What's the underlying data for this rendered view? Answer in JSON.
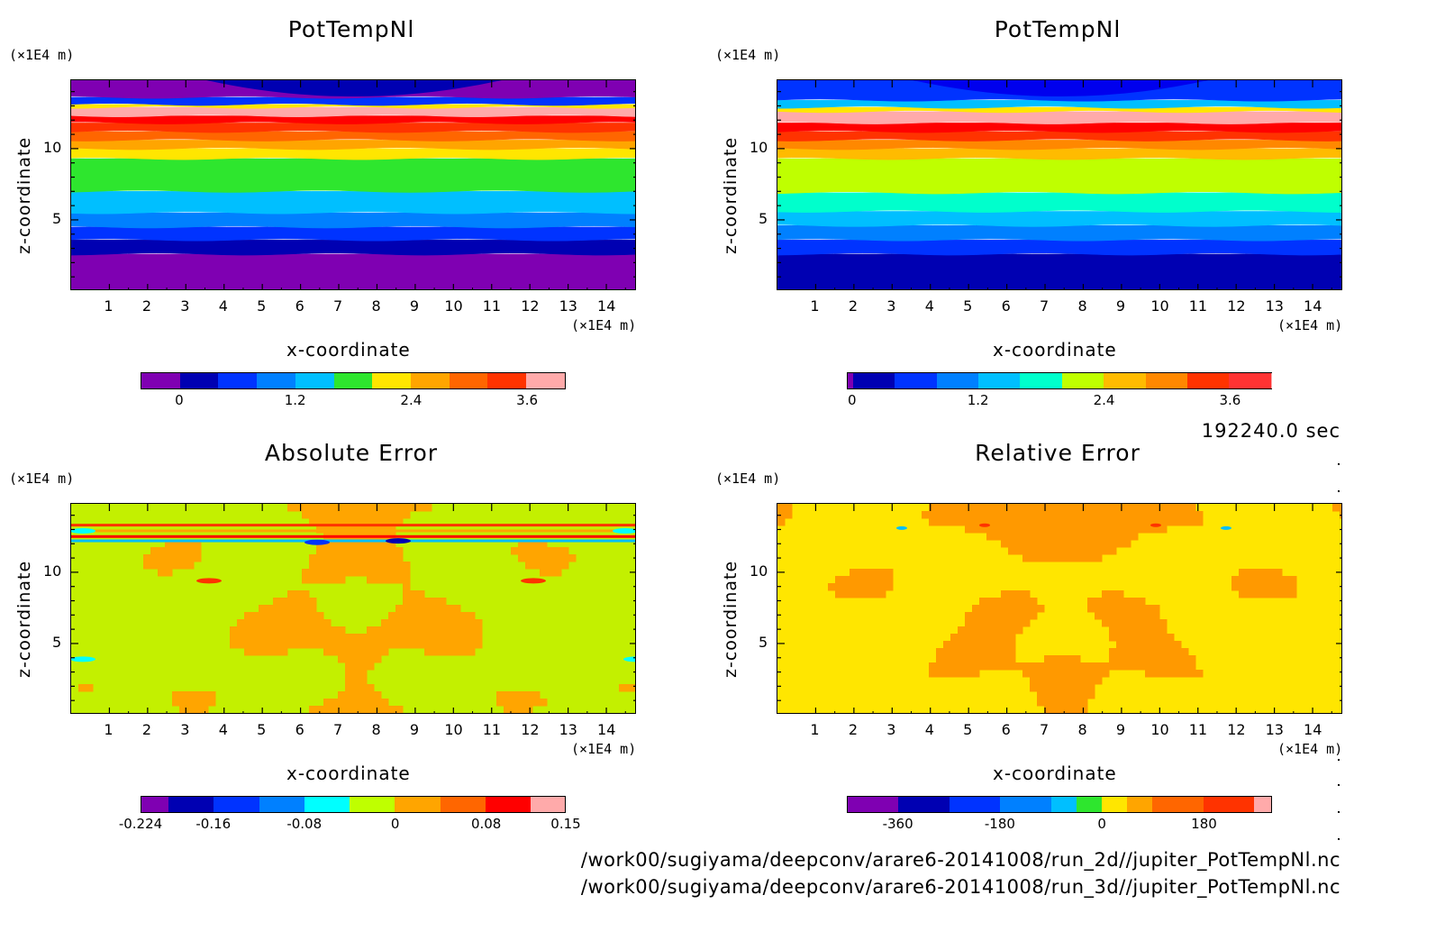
{
  "time_label": "192240.0 sec",
  "footer": {
    "file1": "/work00/sugiyama/deepconv/arare6-20141008/run_2d//jupiter_PotTempNl.nc",
    "file2": "/work00/sugiyama/deepconv/arare6-20141008/run_3d//jupiter_PotTempNl.nc"
  },
  "colors": {
    "rainbow14": [
      "#7f00b2",
      "#0000b2",
      "#0033ff",
      "#0080ff",
      "#00bfff",
      "#00ffff",
      "#2ee62e",
      "#bfff00",
      "#ffe600",
      "#ffa500",
      "#ff6600",
      "#ff3300",
      "#ff0000",
      "#ffaaaa"
    ]
  },
  "chart_data": [
    {
      "type": "heatmap",
      "title": "PotTempNl",
      "xlabel": "x-coordinate",
      "ylabel": "z-coordinate",
      "x_unit": "(×1E4 m)",
      "z_unit": "(×1E4 m)",
      "xlim": [
        0,
        14.8
      ],
      "ylim": [
        0,
        14.8
      ],
      "x_ticks": [
        "1",
        "2",
        "3",
        "4",
        "5",
        "6",
        "7",
        "8",
        "9",
        "10",
        "11",
        "12",
        "13",
        "14"
      ],
      "y_ticks": [
        "5",
        "10"
      ],
      "colorbar": {
        "ticks": [
          "0",
          "1.2",
          "2.4",
          "3.6"
        ],
        "colors": [
          "#7f00b2",
          "#0000b2",
          "#0033ff",
          "#0080ff",
          "#00bfff",
          "#2ee62e",
          "#ffe600",
          "#ffa500",
          "#ff6600",
          "#ff3300",
          "#ffaaaa"
        ],
        "boundaries": [
          -0.4,
          0,
          0.4,
          0.8,
          1.2,
          1.6,
          2.0,
          2.4,
          2.8,
          3.2,
          3.6,
          4.0
        ]
      },
      "bands": [
        {
          "z": [
            0,
            2.6
          ],
          "color": "#7f00b2"
        },
        {
          "z": [
            2.6,
            3.6
          ],
          "color": "#0000b2"
        },
        {
          "z": [
            3.6,
            4.5
          ],
          "color": "#0033ff"
        },
        {
          "z": [
            4.5,
            5.5
          ],
          "color": "#0080ff"
        },
        {
          "z": [
            5.5,
            7.0
          ],
          "color": "#00bfff"
        },
        {
          "z": [
            7.0,
            9.3
          ],
          "color": "#2ee62e"
        },
        {
          "z": [
            9.3,
            10.0
          ],
          "color": "#ffe600"
        },
        {
          "z": [
            10.0,
            10.6
          ],
          "color": "#ffa500"
        },
        {
          "z": [
            10.6,
            11.2
          ],
          "color": "#ff6600"
        },
        {
          "z": [
            11.2,
            11.8
          ],
          "color": "#ff3300"
        },
        {
          "z": [
            11.8,
            12.3
          ],
          "color": "#ff0000"
        },
        {
          "z": [
            12.3,
            12.9
          ],
          "color": "#ffaaaa"
        },
        {
          "z": [
            12.9,
            13.1
          ],
          "color": "#ffe600"
        },
        {
          "z": [
            13.1,
            13.6
          ],
          "color": "#0033ff"
        },
        {
          "z": [
            13.6,
            14.8
          ],
          "color": "#7f00b2"
        }
      ]
    },
    {
      "type": "heatmap",
      "title": "PotTempNl",
      "xlabel": "x-coordinate",
      "ylabel": "z-coordinate",
      "x_unit": "(×1E4 m)",
      "z_unit": "(×1E4 m)",
      "xlim": [
        0,
        14.8
      ],
      "ylim": [
        0,
        14.8
      ],
      "x_ticks": [
        "1",
        "2",
        "3",
        "4",
        "5",
        "6",
        "7",
        "8",
        "9",
        "10",
        "11",
        "12",
        "13",
        "14"
      ],
      "y_ticks": [
        "5",
        "10"
      ],
      "colorbar": {
        "ticks": [
          "0",
          "1.2",
          "2.4",
          "3.6"
        ],
        "colors": [
          "#7f00b2",
          "#0000b2",
          "#0033ff",
          "#0080ff",
          "#00bfff",
          "#00ffcc",
          "#bfff00",
          "#ffbb00",
          "#ff8800",
          "#ff3300",
          "#ff3333",
          "#ffaaaa"
        ],
        "boundaries": [
          -0.05,
          0,
          0.4,
          0.8,
          1.2,
          1.6,
          2.0,
          2.4,
          2.8,
          3.2,
          3.6,
          4.0
        ]
      },
      "bands": [
        {
          "z": [
            0,
            2.6
          ],
          "color": "#0000b2"
        },
        {
          "z": [
            2.6,
            3.6
          ],
          "color": "#0033ff"
        },
        {
          "z": [
            3.6,
            4.6
          ],
          "color": "#0080ff"
        },
        {
          "z": [
            4.6,
            5.6
          ],
          "color": "#00bfff"
        },
        {
          "z": [
            5.6,
            6.9
          ],
          "color": "#00ffcc"
        },
        {
          "z": [
            6.9,
            9.3
          ],
          "color": "#bfff00"
        },
        {
          "z": [
            9.3,
            10.0
          ],
          "color": "#ffbb00"
        },
        {
          "z": [
            10.0,
            10.6
          ],
          "color": "#ff8800"
        },
        {
          "z": [
            10.6,
            11.2
          ],
          "color": "#ff3300"
        },
        {
          "z": [
            11.2,
            11.8
          ],
          "color": "#ff0000"
        },
        {
          "z": [
            11.8,
            12.6
          ],
          "color": "#ffaaaa"
        },
        {
          "z": [
            12.6,
            12.9
          ],
          "color": "#ffe600"
        },
        {
          "z": [
            12.9,
            13.4
          ],
          "color": "#00bfff"
        },
        {
          "z": [
            13.4,
            14.8
          ],
          "color": "#0033ff"
        }
      ]
    },
    {
      "type": "heatmap",
      "title": "Absolute Error",
      "xlabel": "x-coordinate",
      "ylabel": "z-coordinate",
      "x_unit": "(×1E4 m)",
      "z_unit": "(×1E4 m)",
      "xlim": [
        0,
        14.8
      ],
      "ylim": [
        0,
        14.8
      ],
      "x_ticks": [
        "1",
        "2",
        "3",
        "4",
        "5",
        "6",
        "7",
        "8",
        "9",
        "10",
        "11",
        "12",
        "13",
        "14"
      ],
      "y_ticks": [
        "5",
        "10"
      ],
      "colorbar": {
        "ticks": [
          "-0.224",
          "-0.16",
          "-0.08",
          "0",
          "0.08",
          "0.15"
        ],
        "colors": [
          "#7f00b2",
          "#0000b2",
          "#0033ff",
          "#0080ff",
          "#00ffff",
          "#bfff00",
          "#ffa500",
          "#ff6600",
          "#ff0000",
          "#ffaaaa"
        ],
        "boundaries": [
          -0.224,
          -0.2,
          -0.16,
          -0.12,
          -0.08,
          -0.04,
          0,
          0.04,
          0.08,
          0.12,
          0.15
        ]
      },
      "dominant_colors": [
        "#c3f000",
        "#ffa500"
      ]
    },
    {
      "type": "heatmap",
      "title": "Relative Error",
      "xlabel": "x-coordinate",
      "ylabel": "z-coordinate",
      "x_unit": "(×1E4 m)",
      "z_unit": "(×1E4 m)",
      "xlim": [
        0,
        14.8
      ],
      "ylim": [
        0,
        14.8
      ],
      "x_ticks": [
        "1",
        "2",
        "3",
        "4",
        "5",
        "6",
        "7",
        "8",
        "9",
        "10",
        "11",
        "12",
        "13",
        "14"
      ],
      "y_ticks": [
        "5",
        "10"
      ],
      "colorbar": {
        "ticks": [
          "-360",
          "-180",
          "0",
          "180"
        ],
        "colors": [
          "#7f00b2",
          "#0000b2",
          "#0033ff",
          "#0080ff",
          "#00bfff",
          "#2ee62e",
          "#ffe600",
          "#ffa500",
          "#ff6600",
          "#ff3300",
          "#ffaaaa"
        ],
        "boundaries": [
          -450,
          -360,
          -270,
          -180,
          -90,
          -45,
          0,
          45,
          90,
          180,
          270,
          300
        ]
      },
      "dominant_colors": [
        "#ffe600",
        "#ff9900"
      ]
    }
  ]
}
